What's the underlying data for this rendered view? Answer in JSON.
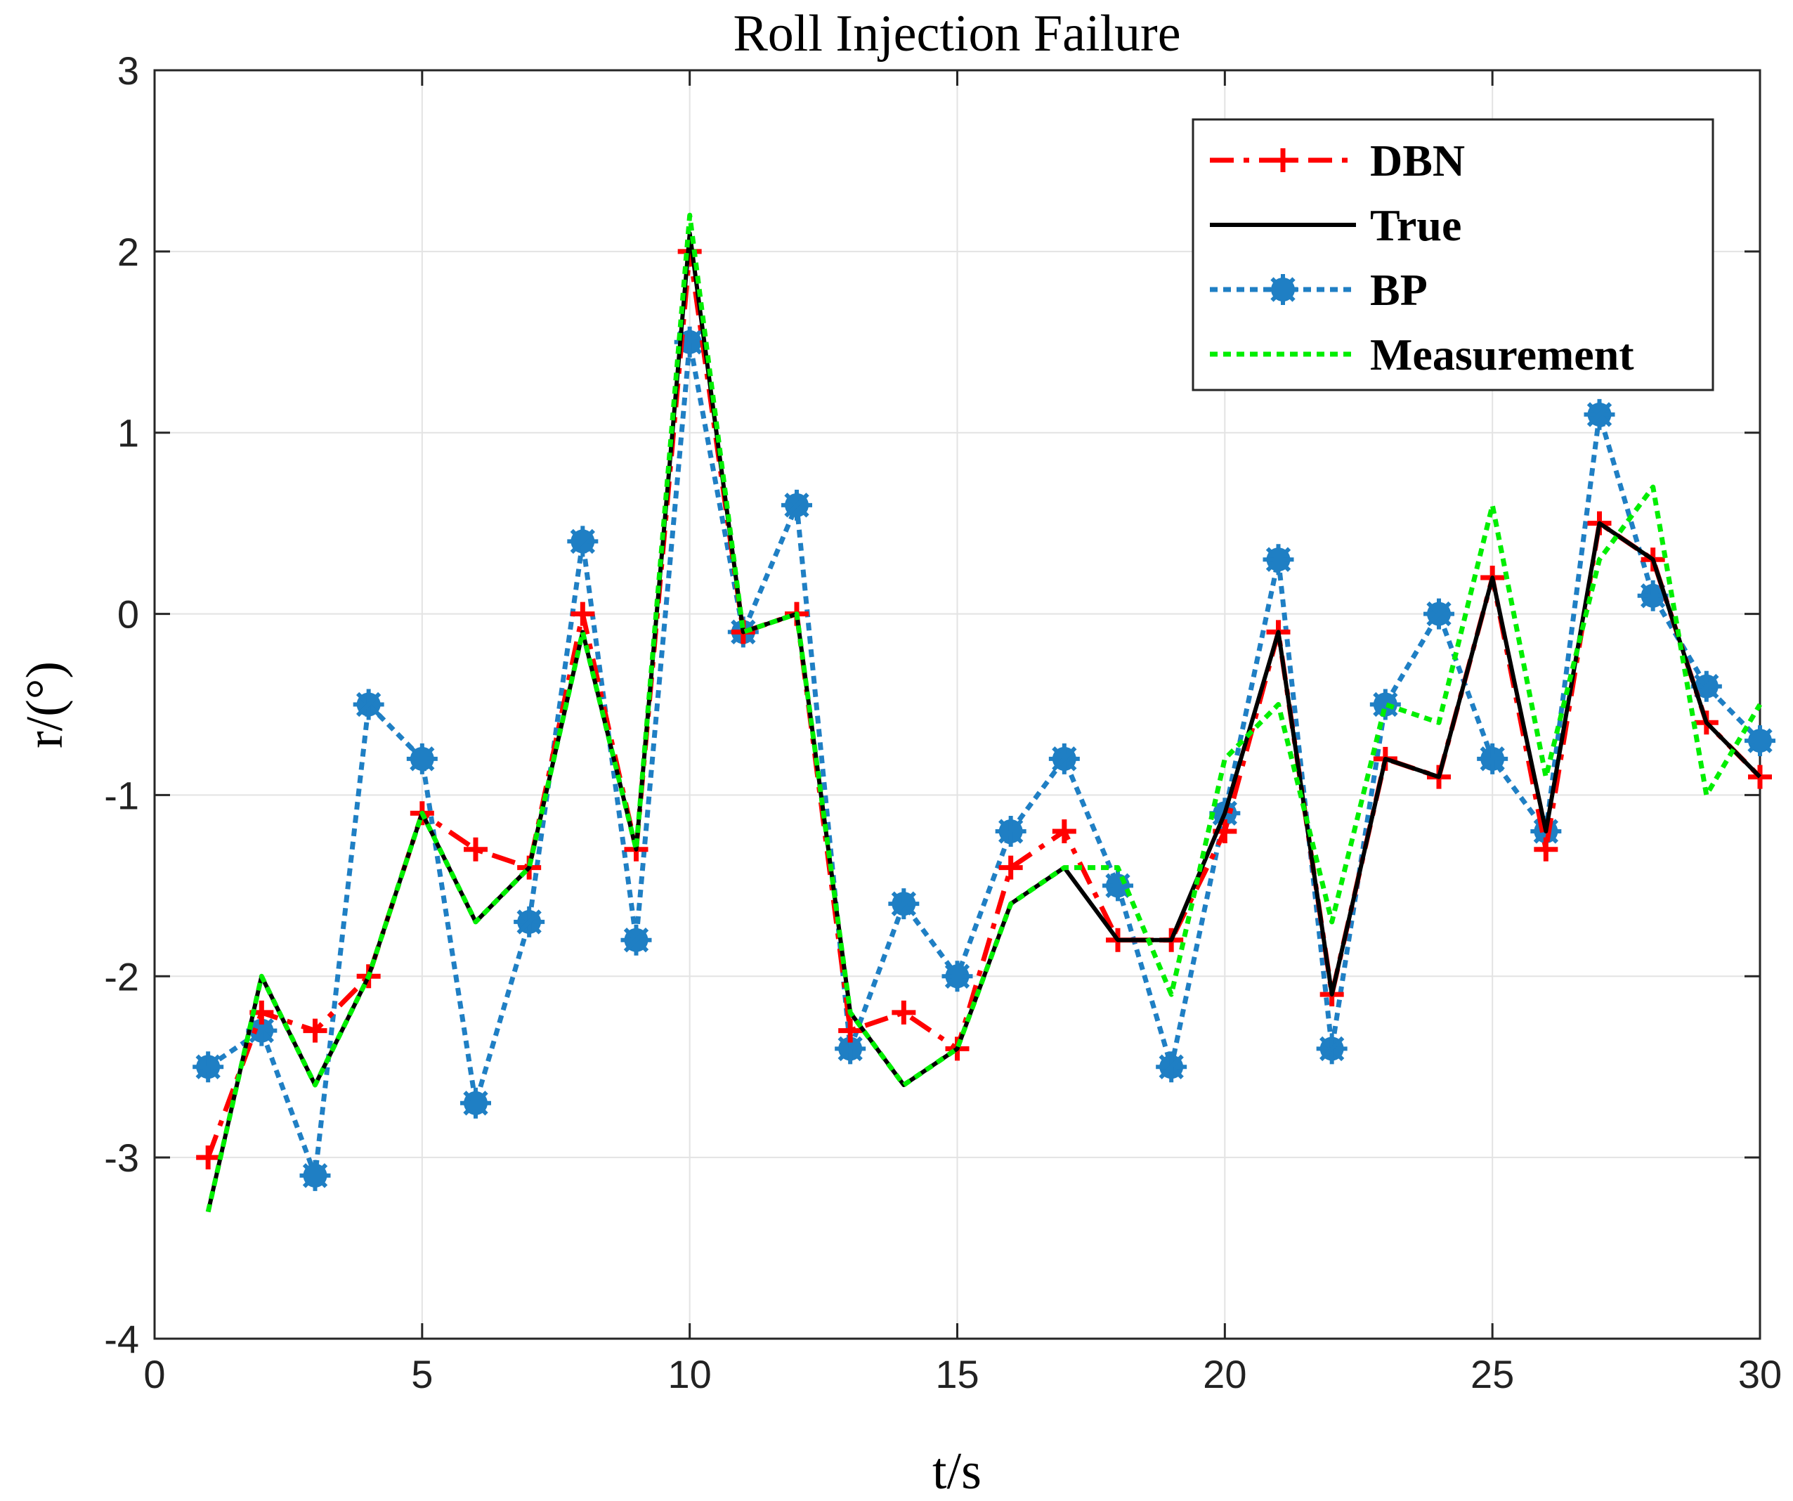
{
  "chart_data": {
    "type": "line",
    "title": "Roll Injection Failure",
    "xlabel": "t/s",
    "ylabel": "r/(°)",
    "xlim": [
      0,
      30
    ],
    "ylim": [
      -4,
      3
    ],
    "xticks": [
      0,
      5,
      10,
      15,
      20,
      25,
      30
    ],
    "yticks": [
      -4,
      -3,
      -2,
      -1,
      0,
      1,
      2,
      3
    ],
    "grid": true,
    "legend_position": "top-right",
    "x": [
      1,
      2,
      3,
      4,
      5,
      6,
      7,
      8,
      9,
      10,
      11,
      12,
      13,
      14,
      15,
      16,
      17,
      18,
      19,
      20,
      21,
      22,
      23,
      24,
      25,
      26,
      27,
      28,
      29,
      30
    ],
    "series": [
      {
        "name": "DBN",
        "color": "#ff0000",
        "style": "dashdot",
        "marker": "plus",
        "values": [
          -3.0,
          -2.2,
          -2.3,
          -2.0,
          -1.1,
          -1.3,
          -1.4,
          0.0,
          -1.3,
          2.0,
          -0.1,
          0.0,
          -2.3,
          -2.2,
          -2.4,
          -1.4,
          -1.2,
          -1.8,
          -1.8,
          -1.2,
          -0.1,
          -2.1,
          -0.8,
          -0.9,
          0.2,
          -1.3,
          0.5,
          0.3,
          -0.6,
          -0.9
        ]
      },
      {
        "name": "True",
        "color": "#000000",
        "style": "solid",
        "marker": "none",
        "values": [
          -3.3,
          -2.0,
          -2.6,
          -2.0,
          -1.1,
          -1.7,
          -1.4,
          -0.1,
          -1.3,
          2.1,
          -0.1,
          0.0,
          -2.2,
          -2.6,
          -2.4,
          -1.6,
          -1.4,
          -1.8,
          -1.8,
          -1.1,
          -0.1,
          -2.1,
          -0.8,
          -0.9,
          0.2,
          -1.2,
          0.5,
          0.3,
          -0.6,
          -0.9
        ]
      },
      {
        "name": "BP",
        "color": "#1f7fc4",
        "style": "dotted",
        "marker": "star",
        "values": [
          -2.5,
          -2.3,
          -3.1,
          -0.5,
          -0.8,
          -2.7,
          -1.7,
          0.4,
          -1.8,
          1.5,
          -0.1,
          0.6,
          -2.4,
          -1.6,
          -2.0,
          -1.2,
          -0.8,
          -1.5,
          -2.5,
          -1.1,
          0.3,
          -2.4,
          -0.5,
          0.0,
          -0.8,
          -1.2,
          1.1,
          0.1,
          -0.4,
          -0.7
        ]
      },
      {
        "name": "Measurement",
        "color": "#00ee00",
        "style": "dotted",
        "marker": "none",
        "values": [
          -3.3,
          -2.0,
          -2.6,
          -2.0,
          -1.1,
          -1.7,
          -1.4,
          -0.1,
          -1.3,
          2.2,
          -0.1,
          0.0,
          -2.2,
          -2.6,
          -2.4,
          -1.6,
          -1.4,
          -1.4,
          -2.1,
          -0.8,
          -0.5,
          -1.7,
          -0.5,
          -0.6,
          0.6,
          -0.9,
          0.3,
          0.7,
          -1.0,
          -0.5
        ]
      }
    ]
  }
}
